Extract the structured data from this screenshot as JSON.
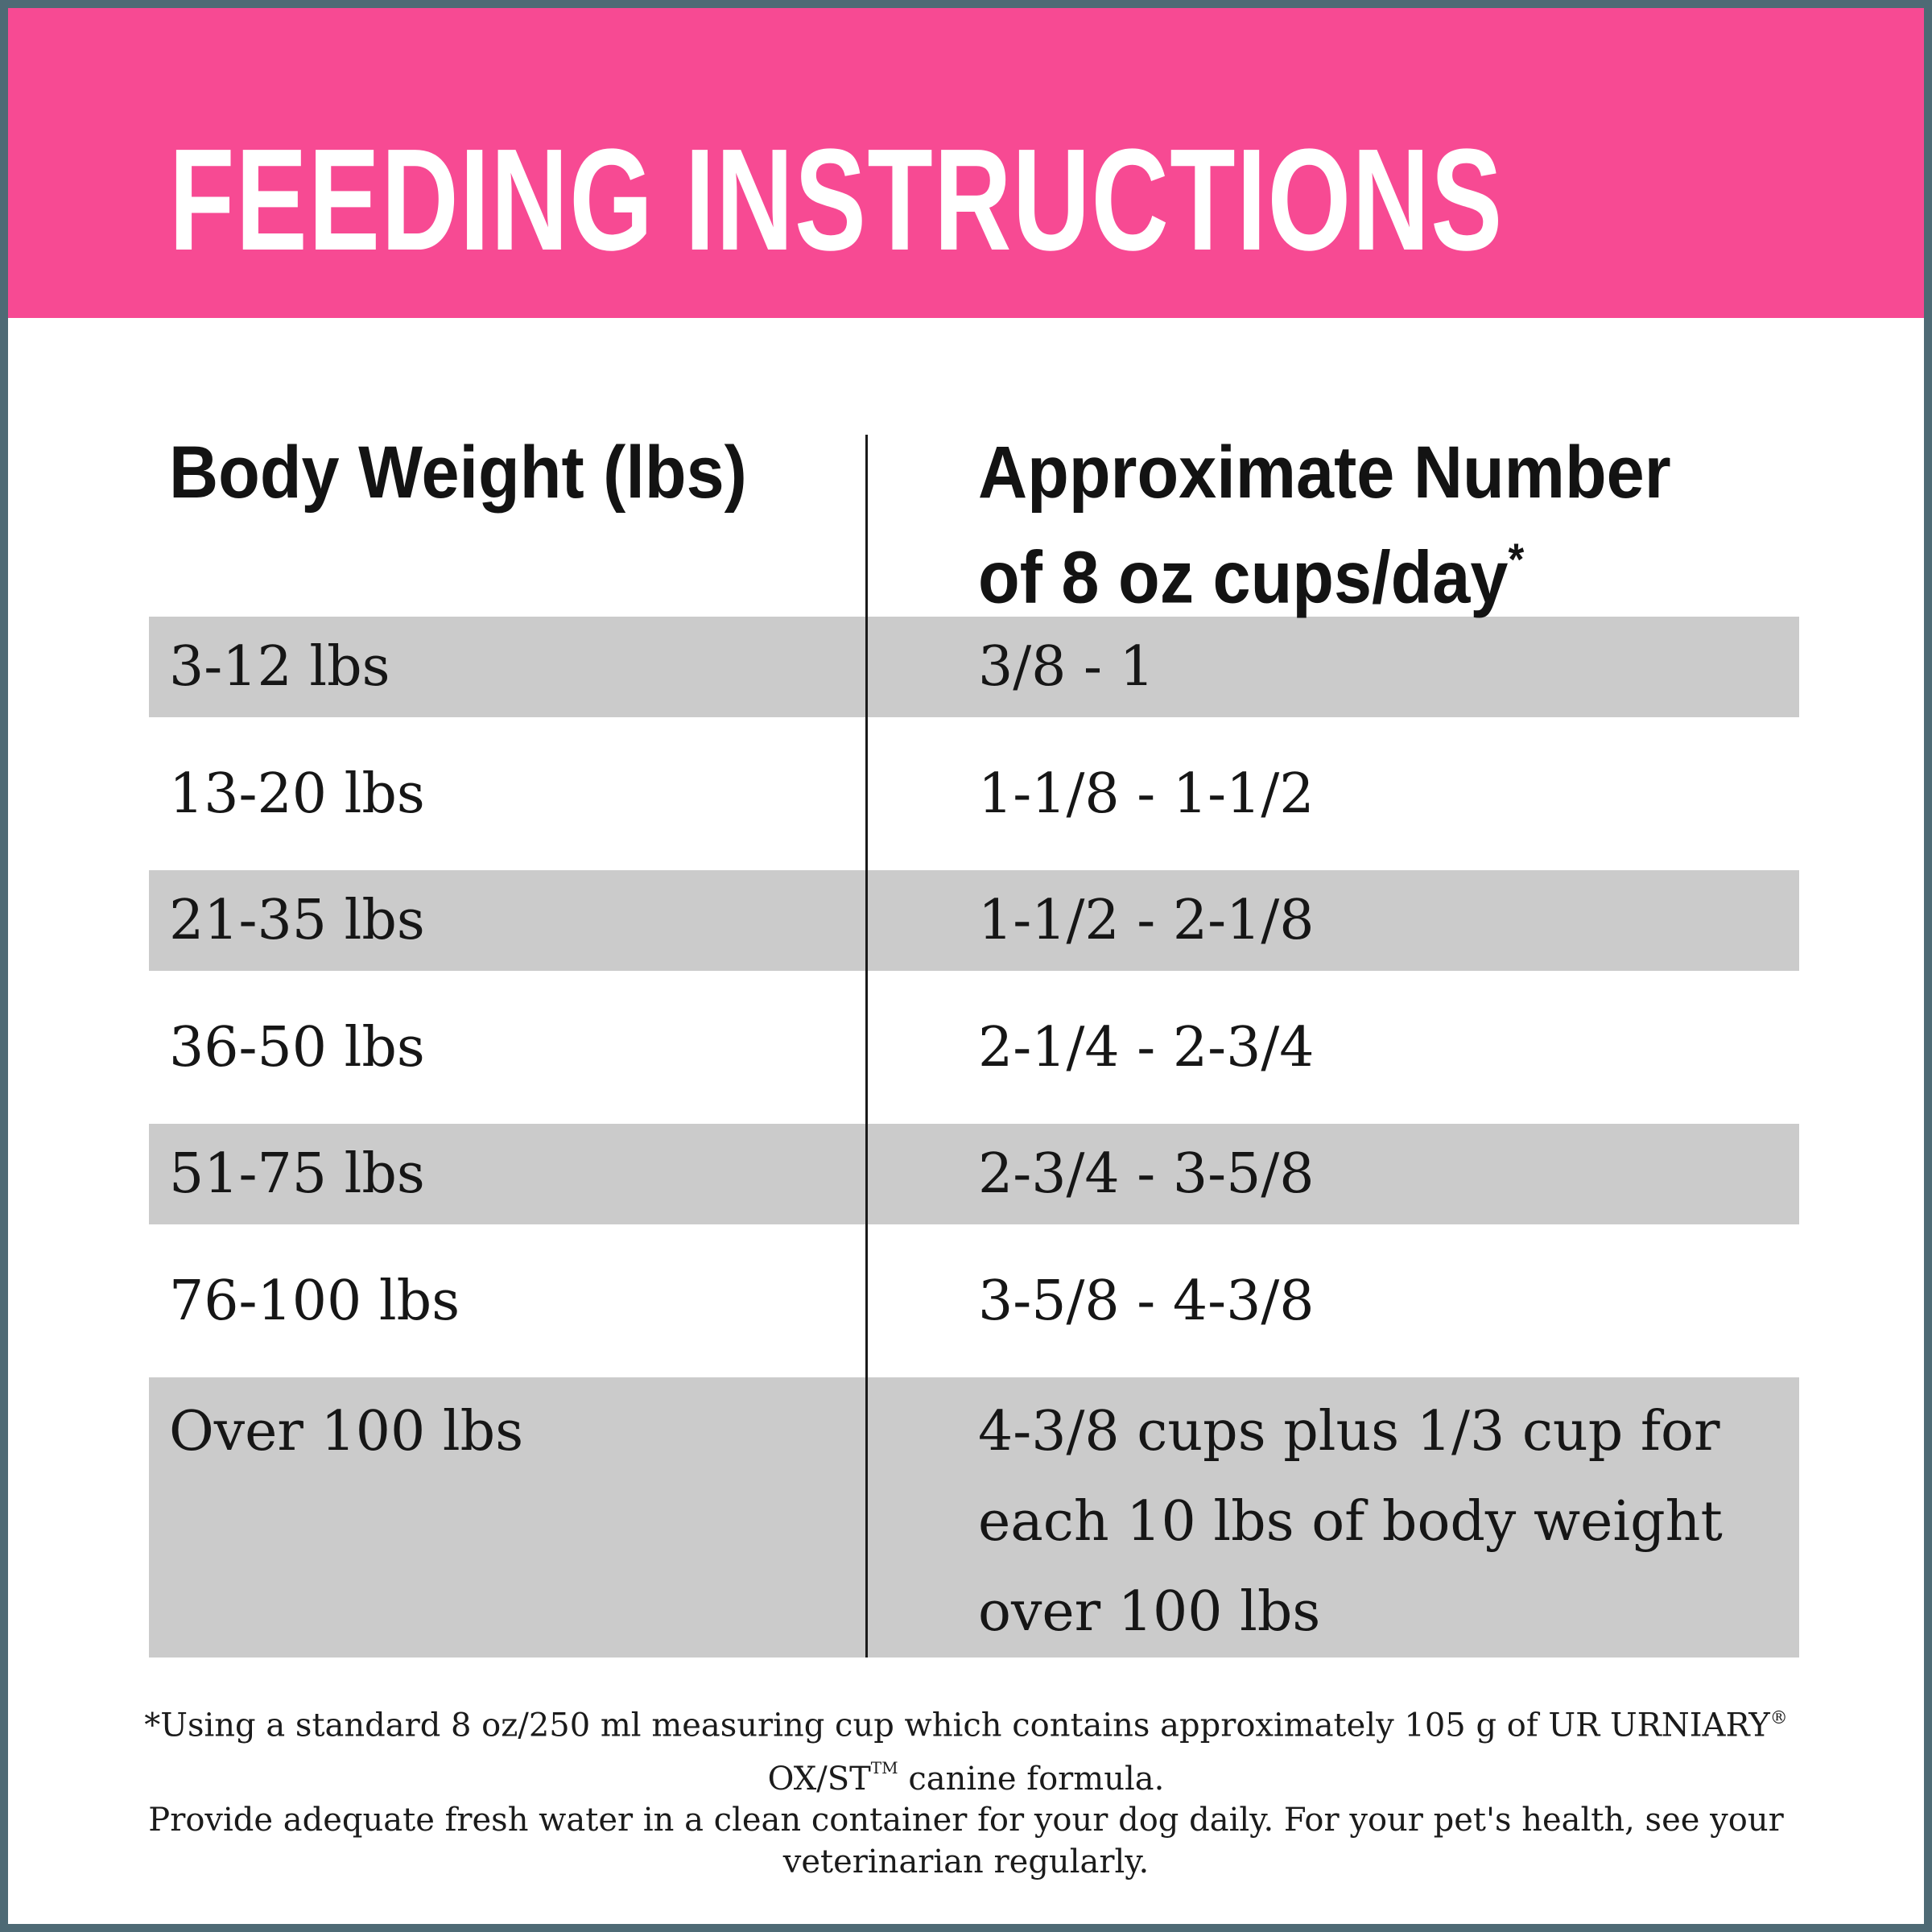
{
  "page": {
    "border_color": "#4E6A75",
    "background_color": "#FFFFFF"
  },
  "header": {
    "title": "FEEDING INSTRUCTIONS",
    "background_color": "#F74A93",
    "text_color": "#FFFFFF"
  },
  "table": {
    "shaded_row_color": "#CBCBCB",
    "columns": {
      "body_weight_label": "Body Weight (lbs)",
      "cups_label_line1": "Approximate Number",
      "cups_label_line2": "of 8 oz cups/day",
      "cups_label_superscript": "*"
    },
    "rows": [
      {
        "weight": "3-12 lbs",
        "cups": "3/8 - 1"
      },
      {
        "weight": "13-20 lbs",
        "cups": "1-1/8 - 1-1/2"
      },
      {
        "weight": "21-35 lbs",
        "cups": "1-1/2 - 2-1/8"
      },
      {
        "weight": "36-50 lbs",
        "cups": "2-1/4 - 2-3/4"
      },
      {
        "weight": "51-75 lbs",
        "cups": "2-3/4 - 3-5/8"
      },
      {
        "weight": "76-100 lbs",
        "cups": "3-5/8 - 4-3/8"
      },
      {
        "weight": "Over 100 lbs",
        "cups": "4-3/8 cups plus 1/3 cup for each 10 lbs of body weight over 100 lbs"
      }
    ]
  },
  "footnote": {
    "line1_part1": "*Using a standard 8 oz/250 ml measuring cup which contains approximately 105 g of UR URNIARY",
    "line1_reg": "®",
    "line1_part2": " OX/ST",
    "line1_tm": "TM",
    "line1_part3": " canine formula.",
    "line2": "Provide adequate fresh water in a clean container for your dog daily. For your pet's health, see your veterinarian regularly."
  }
}
